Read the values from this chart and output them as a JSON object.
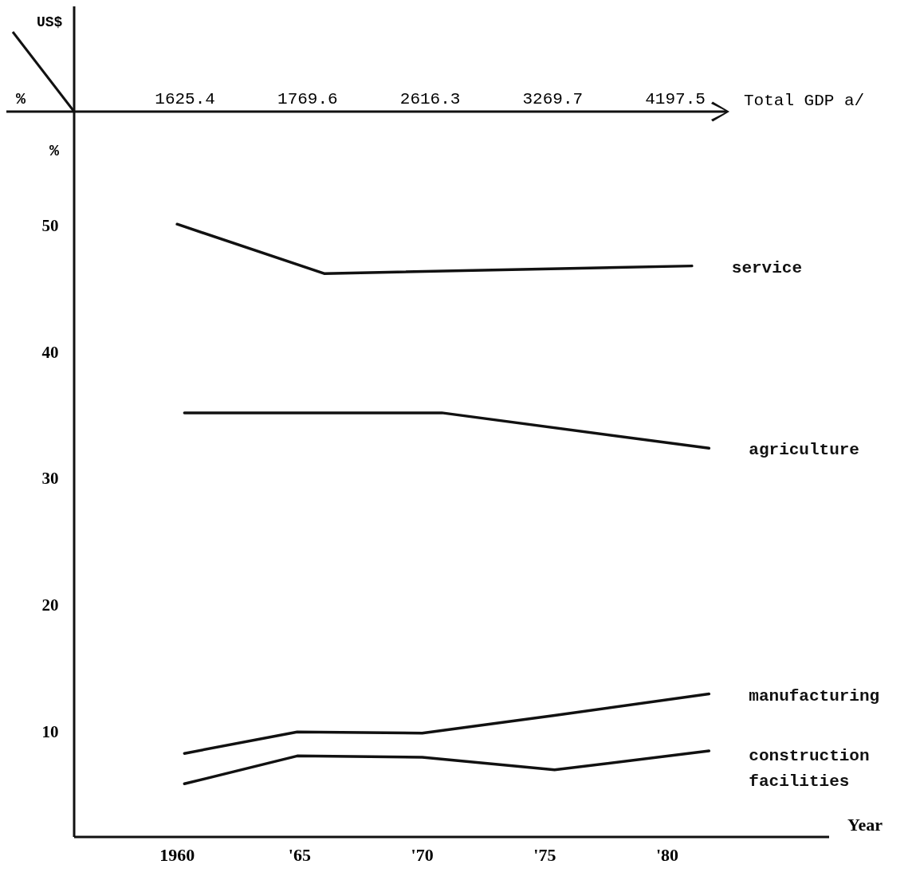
{
  "chart_data": {
    "type": "line",
    "xlabel": "Year",
    "ylabel": "%",
    "x2label": "Total GDP a/",
    "annotations": [
      "US$",
      "%",
      "1625.4",
      "1769.6",
      "2616.3",
      "3269.7",
      "4197.5"
    ],
    "xlim": [
      1955.8,
      1986.6
    ],
    "xticks": [
      {
        "value": 1960,
        "label": "1960"
      },
      {
        "value": 1965,
        "label": "'65"
      },
      {
        "value": 1970,
        "label": "'70"
      },
      {
        "value": 1975,
        "label": "'75"
      },
      {
        "value": 1980,
        "label": "'80"
      }
    ],
    "ylim": [
      1.7,
      67.3
    ],
    "yticks": [
      10,
      20,
      30,
      40,
      50
    ],
    "grid": false,
    "marker": "none",
    "line_style": "solid",
    "series": [
      {
        "name": "service",
        "color": "#111111",
        "x": [
          1960,
          1966,
          1981
        ],
        "values": [
          50.1,
          46.2,
          46.8
        ]
      },
      {
        "name": "agriculture",
        "color": "#111111",
        "x": [
          1960.3,
          1970.8,
          1981.7
        ],
        "values": [
          35.2,
          35.2,
          32.4
        ]
      },
      {
        "name": "manufacturing",
        "color": "#111111",
        "x": [
          1960.3,
          1964.9,
          1970,
          1975.4,
          1981.7
        ],
        "values": [
          8.3,
          10.0,
          9.9,
          11.3,
          13.0
        ]
      },
      {
        "name": "construction facilities",
        "color": "#111111",
        "x": [
          1960.3,
          1964.9,
          1970,
          1975.4,
          1981.7
        ],
        "values": [
          5.9,
          8.1,
          8.0,
          7.0,
          8.5
        ]
      }
    ]
  }
}
